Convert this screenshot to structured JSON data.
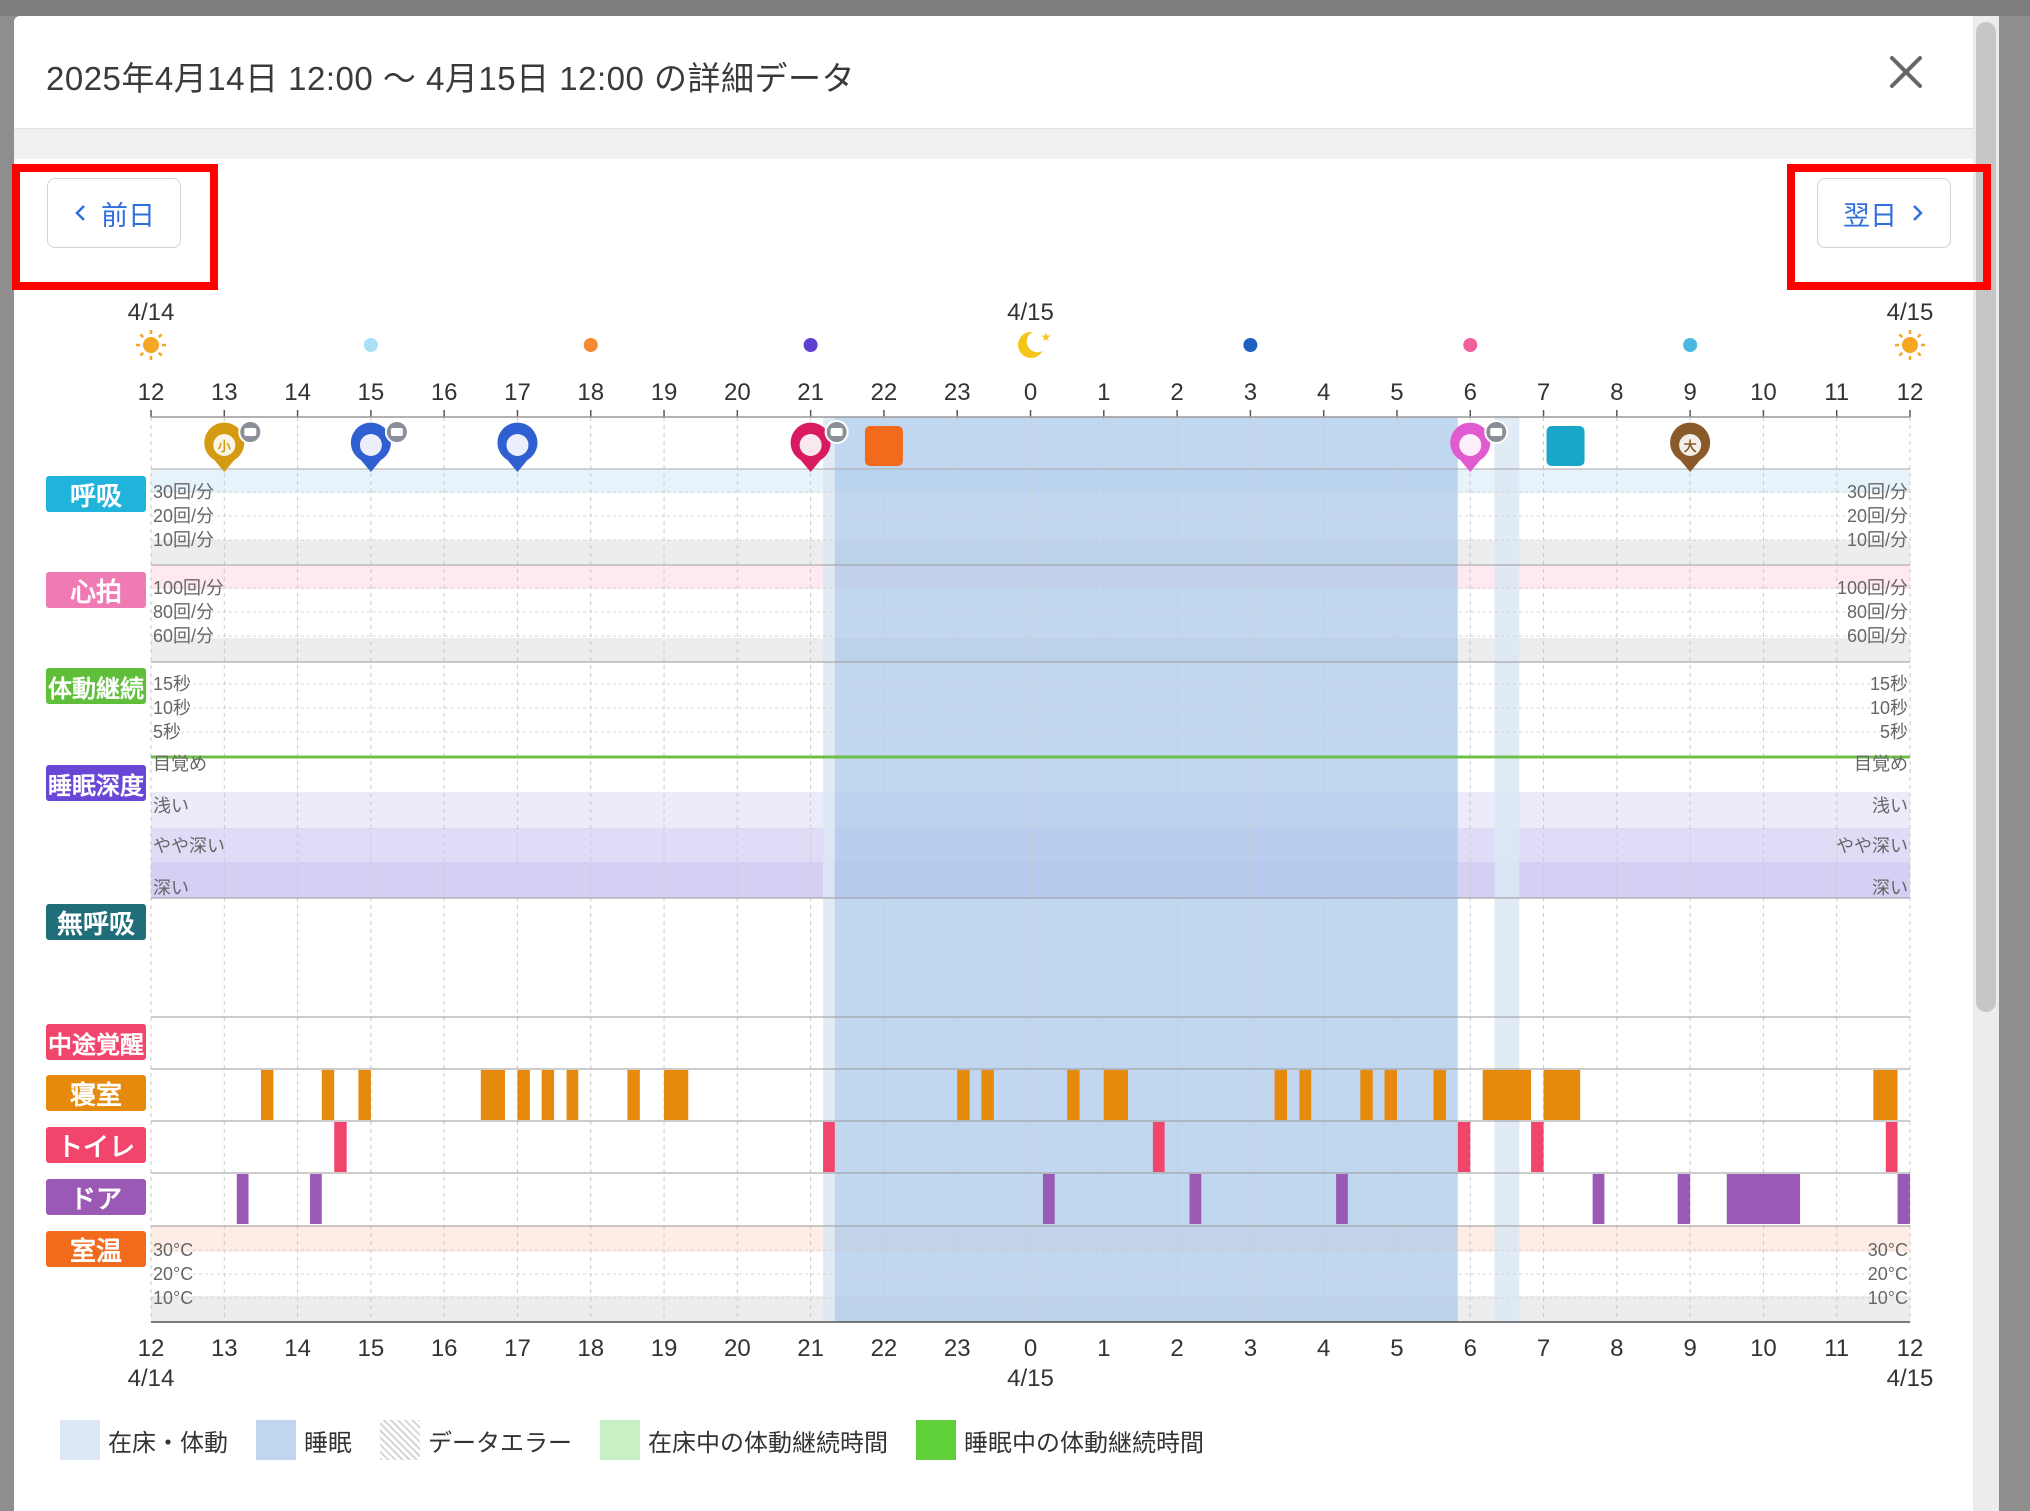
{
  "modal": {
    "title": "2025年4月14日 12:00 〜 4月15日 12:00 の詳細データ",
    "close_label": "×"
  },
  "nav": {
    "prev_label": "前日",
    "next_label": "翌日"
  },
  "timeline": {
    "dates_top": {
      "start": "4/14",
      "middle": "4/15",
      "end": "4/15"
    },
    "dates_bottom": {
      "start": "4/14",
      "middle": "4/15",
      "end": "4/15"
    },
    "hour_ticks": [
      "12",
      "13",
      "14",
      "15",
      "16",
      "17",
      "18",
      "19",
      "20",
      "21",
      "22",
      "23",
      "0",
      "1",
      "2",
      "3",
      "4",
      "5",
      "6",
      "7",
      "8",
      "9",
      "10",
      "11",
      "12"
    ],
    "phase_markers": [
      {
        "hour_index": 0,
        "icon": "sun-icon",
        "color": "#f5a623"
      },
      {
        "hour_index": 3,
        "icon": "dot",
        "color": "#a8e1f5"
      },
      {
        "hour_index": 6,
        "icon": "dot",
        "color": "#f58a32"
      },
      {
        "hour_index": 9,
        "icon": "dot",
        "color": "#5e3fd1"
      },
      {
        "hour_index": 12,
        "icon": "moon-icon",
        "color": "#f5c518"
      },
      {
        "hour_index": 15,
        "icon": "dot",
        "color": "#1f5fbf"
      },
      {
        "hour_index": 18,
        "icon": "dot",
        "color": "#f0609a"
      },
      {
        "hour_index": 21,
        "icon": "dot",
        "color": "#4ab8e0"
      },
      {
        "hour_index": 24,
        "icon": "sun-icon",
        "color": "#f5a623"
      }
    ],
    "event_icons": [
      {
        "hour": 13.0,
        "name": "toilet-urine-icon",
        "color": "#d49a12",
        "glyph": "小",
        "comment": true
      },
      {
        "hour": 15.0,
        "name": "flashlight-icon",
        "color": "#2f5fd0",
        "glyph": "",
        "comment": true
      },
      {
        "hour": 17.0,
        "name": "flashlight-icon",
        "color": "#2f5fd0",
        "glyph": "",
        "comment": false
      },
      {
        "hour": 21.0,
        "name": "fall-alert-icon",
        "color": "#d81b60",
        "glyph": "",
        "comment": true
      },
      {
        "hour": 22.0,
        "name": "room-temperature-alert-icon",
        "color": "#f26b1d",
        "glyph": "",
        "comment": false
      },
      {
        "hour": 6.0,
        "name": "medication-icon",
        "color": "#e05ad0",
        "glyph": "",
        "comment": true
      },
      {
        "hour": 7.3,
        "name": "humidity-alert-icon",
        "color": "#1aa6c8",
        "glyph": "",
        "comment": false
      },
      {
        "hour": 9.0,
        "name": "toilet-stool-icon",
        "color": "#8b5a2b",
        "glyph": "大",
        "comment": false
      }
    ]
  },
  "categories": [
    {
      "key": "respiration",
      "label": "呼吸",
      "color": "#20b3dc"
    },
    {
      "key": "heart_rate",
      "label": "心拍",
      "color": "#f07ab3"
    },
    {
      "key": "body_movement",
      "label": "体動継続",
      "color": "#5fbf3a"
    },
    {
      "key": "sleep_depth",
      "label": "睡眠深度",
      "color": "#6a46d6"
    },
    {
      "key": "apnea",
      "label": "無呼吸",
      "color": "#1f6e7a"
    },
    {
      "key": "mid_awakening",
      "label": "中途覚醒",
      "color": "#f2456c"
    },
    {
      "key": "bedroom",
      "label": "寝室",
      "color": "#e58a0c"
    },
    {
      "key": "toilet",
      "label": "トイレ",
      "color": "#f2456c"
    },
    {
      "key": "door",
      "label": "ドア",
      "color": "#9a59b5"
    },
    {
      "key": "room_temp",
      "label": "室温",
      "color": "#f26b1d"
    }
  ],
  "axis_labels": {
    "respiration": [
      "30回/分",
      "20回/分",
      "10回/分"
    ],
    "heart_rate": [
      "100回/分",
      "80回/分",
      "60回/分"
    ],
    "body_movement": [
      "15秒",
      "10秒",
      "5秒"
    ],
    "sleep_depth": [
      "目覚め",
      "浅い",
      "やや深い",
      "深い"
    ],
    "room_temp": [
      "30°C",
      "20°C",
      "10°C"
    ]
  },
  "chart_data": {
    "type": "timeline",
    "x_range_hours": [
      0,
      24
    ],
    "x_start_label": "12",
    "in_bed_intervals": [
      [
        9.17,
        9.33
      ],
      [
        18.33,
        18.67
      ]
    ],
    "sleep_intervals": [
      [
        9.33,
        17.83
      ]
    ],
    "bedroom_presence": [
      [
        1.5,
        1.67
      ],
      [
        2.33,
        2.5
      ],
      [
        2.83,
        3.0
      ],
      [
        4.5,
        4.83
      ],
      [
        5.0,
        5.17
      ],
      [
        5.33,
        5.5
      ],
      [
        5.67,
        5.83
      ],
      [
        6.5,
        6.67
      ],
      [
        7.0,
        7.33
      ],
      [
        11.0,
        11.17
      ],
      [
        11.33,
        11.5
      ],
      [
        12.5,
        12.67
      ],
      [
        13.0,
        13.33
      ],
      [
        15.33,
        15.5
      ],
      [
        15.67,
        15.83
      ],
      [
        16.5,
        16.67
      ],
      [
        16.83,
        17.0
      ],
      [
        17.5,
        17.67
      ],
      [
        18.17,
        18.83
      ],
      [
        19.0,
        19.5
      ],
      [
        23.5,
        23.83
      ]
    ],
    "toilet_presence": [
      [
        2.5,
        2.67
      ],
      [
        9.17,
        9.33
      ],
      [
        13.67,
        13.83
      ],
      [
        17.83,
        18.0
      ],
      [
        18.83,
        19.0
      ],
      [
        23.67,
        23.83
      ]
    ],
    "door_events": [
      [
        1.17,
        1.33
      ],
      [
        2.17,
        2.33
      ],
      [
        12.17,
        12.33
      ],
      [
        14.17,
        14.33
      ],
      [
        16.17,
        16.33
      ],
      [
        19.67,
        19.83
      ],
      [
        20.83,
        21.0
      ],
      [
        21.5,
        22.5
      ],
      [
        23.83,
        24.0
      ]
    ],
    "legend": [
      {
        "label": "在床・体動",
        "color": "#dbe7f5"
      },
      {
        "label": "睡眠",
        "color": "#bfd6ee"
      },
      {
        "label": "データエラー",
        "color": "#dddddd",
        "pattern": "hatch"
      },
      {
        "label": "在床中の体動継続時間",
        "color": "#c9efc5"
      },
      {
        "label": "睡眠中の体動継続時間",
        "color": "#5fcf3a"
      }
    ]
  }
}
